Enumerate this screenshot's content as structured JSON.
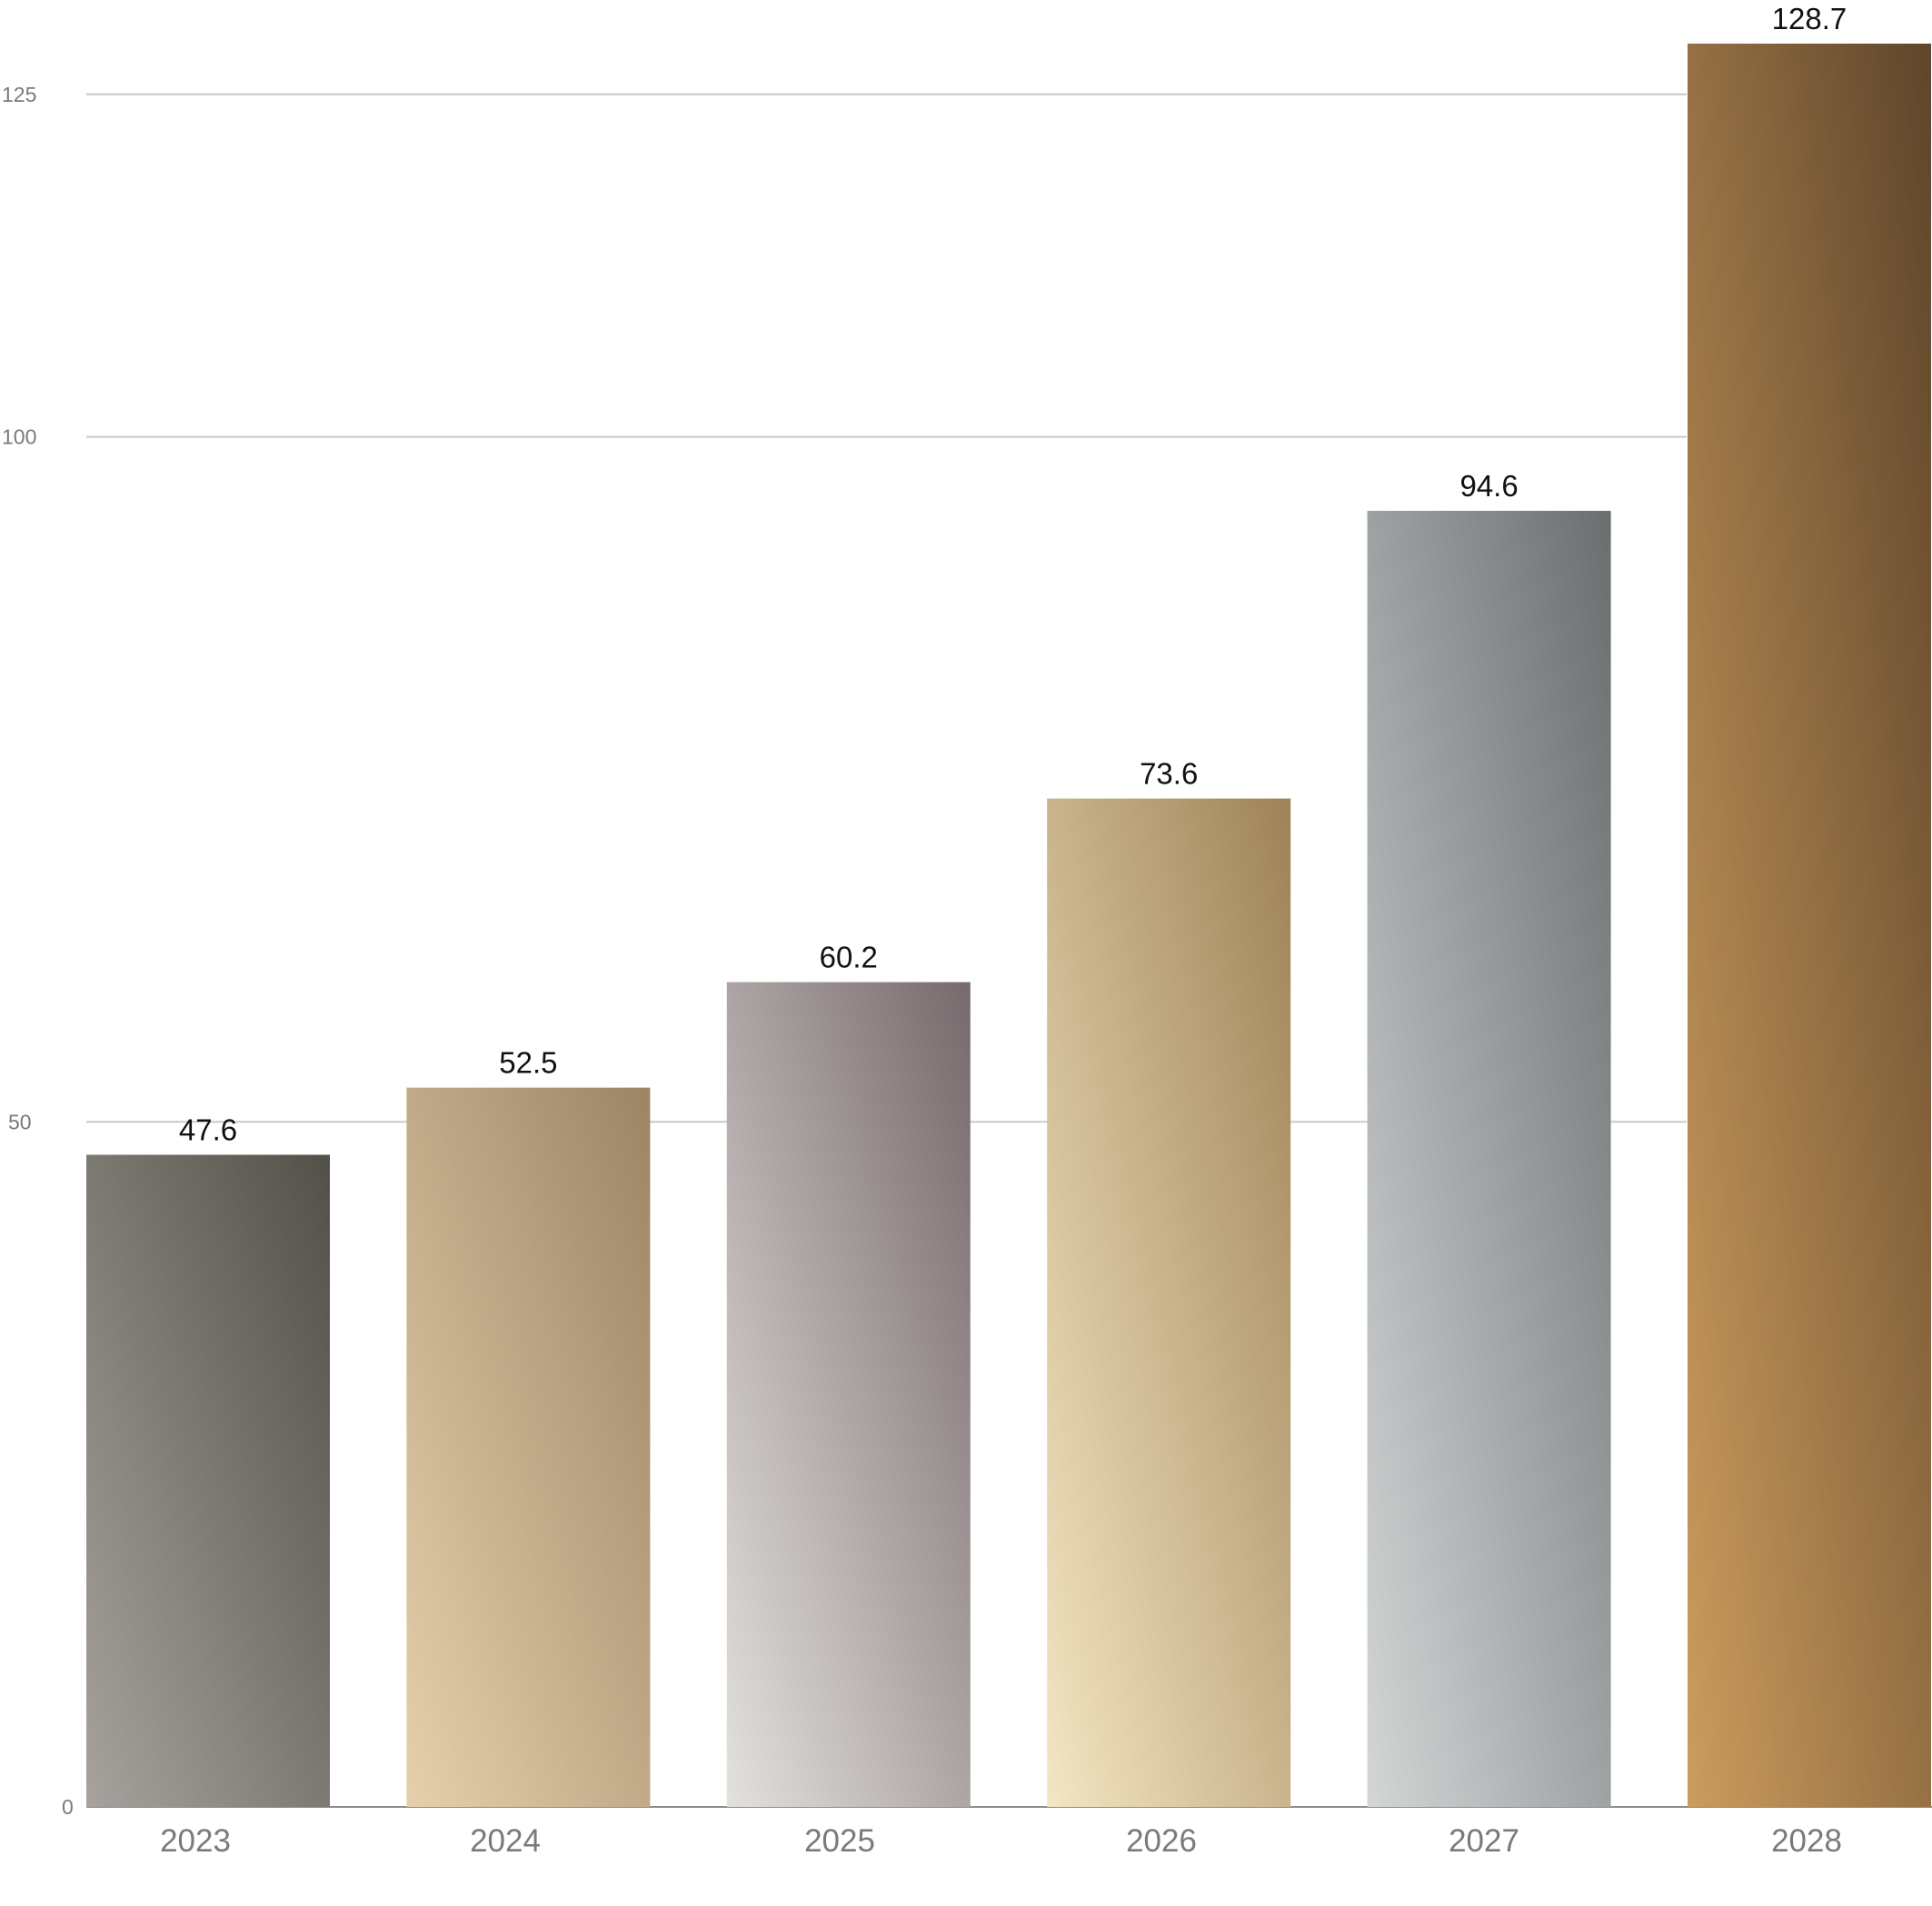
{
  "chart_data": {
    "type": "bar",
    "title": "",
    "xlabel": "",
    "ylabel": "",
    "ylim": [
      0,
      128.7
    ],
    "y_ticks": [
      0,
      50,
      100,
      125
    ],
    "grid": true,
    "legend": "none",
    "categories": [
      "2023",
      "2024",
      "2025",
      "2026",
      "2027",
      "2028"
    ],
    "values": [
      47.6,
      52.5,
      60.2,
      73.6,
      94.6,
      128.7
    ],
    "value_labels": [
      "47.6",
      "52.5",
      "60.2",
      "73.6",
      "94.6",
      "128.7"
    ],
    "bar_gradients": [
      {
        "light": "#a7a29e",
        "dark": "#525048"
      },
      {
        "light": "#e7cfab",
        "dark": "#9b8565"
      },
      {
        "light": "#e3e1dd",
        "dark": "#77696c"
      },
      {
        "light": "#f3e6c2",
        "dark": "#9f8257"
      },
      {
        "light": "#d3d6d6",
        "dark": "#6a6e6f"
      },
      {
        "light": "#cc9c5d",
        "dark": "#5f452b"
      }
    ],
    "colors": {
      "grid": "#c9c9c9",
      "baseline": "#8c8c8c",
      "tick_text": "#7a7a7a",
      "value_text": "#111111"
    }
  }
}
